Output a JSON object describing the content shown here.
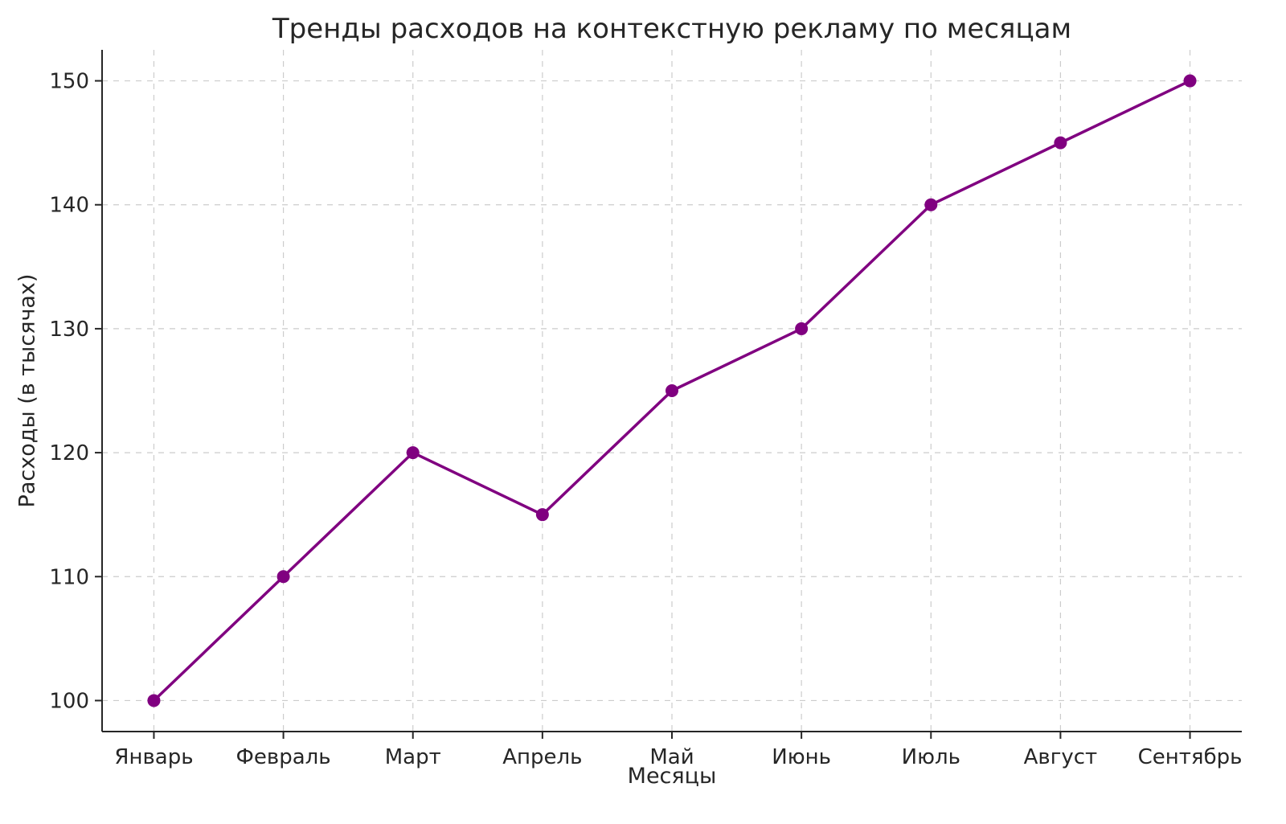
{
  "chart_data": {
    "type": "line",
    "title": "Тренды расходов на контекстную рекламу по месяцам",
    "xlabel": "Месяцы",
    "ylabel": "Расходы (в тысячах)",
    "categories": [
      "Январь",
      "Февраль",
      "Март",
      "Апрель",
      "Май",
      "Июнь",
      "Июль",
      "Август",
      "Сентябрь"
    ],
    "series": [
      {
        "name": "Расходы",
        "values": [
          100,
          110,
          120,
          115,
          125,
          130,
          140,
          145,
          150
        ]
      }
    ],
    "yticks": [
      100,
      110,
      120,
      130,
      140,
      150
    ],
    "ylim": [
      97.5,
      152.5
    ],
    "grid": true,
    "grid_style": "dashed",
    "grid_color": "#cccccc",
    "line_color": "#800080",
    "marker": "circle",
    "legend": "none"
  }
}
